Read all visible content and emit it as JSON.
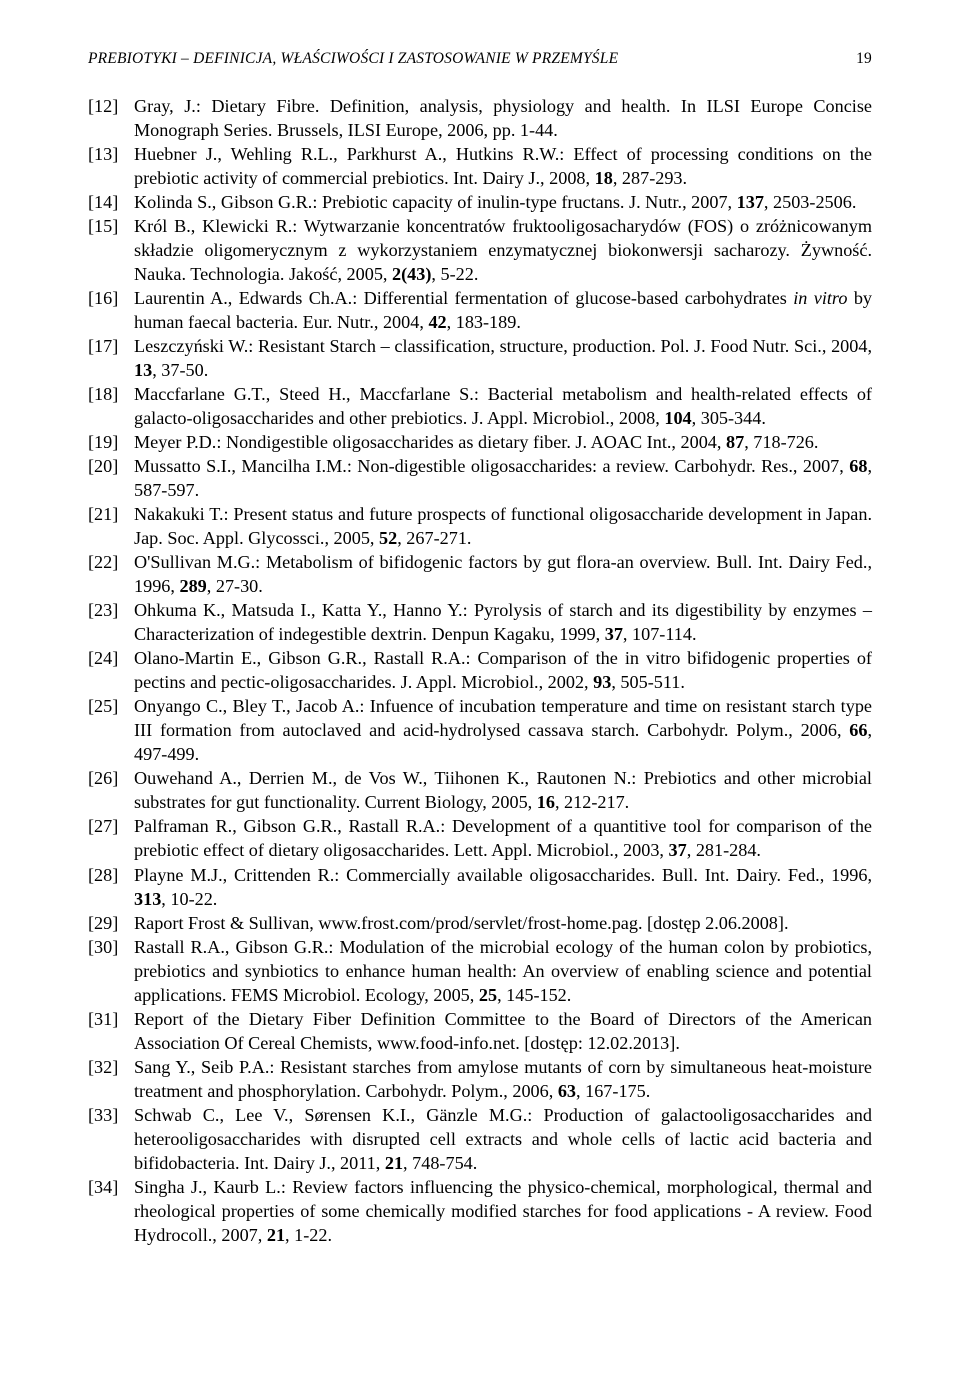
{
  "header": {
    "running_title": "PREBIOTYKI – DEFINICJA, WŁAŚCIWOŚCI I ZASTOSOWANIE W PRZEMYŚLE",
    "page_number": "19"
  },
  "references": [
    {
      "n": "[12]",
      "pre": "Gray, J.: Dietary Fibre. Definition, analysis, physiology and health. In ILSI Europe Concise Monograph Series. Brussels, ILSI Europe, 2006, pp. 1-44.",
      "bolds": []
    },
    {
      "n": "[13]",
      "pre": "Huebner J., Wehling R.L., Parkhurst A., Hutkins R.W.: Effect of processing conditions on the prebiotic activity of commercial prebiotics. Int. Dairy J., 2008, ",
      "bold": "18",
      "post": ", 287-293."
    },
    {
      "n": "[14]",
      "pre": "Kolinda S., Gibson G.R.: Prebiotic capacity of inulin-type fructans. J. Nutr., 2007, ",
      "bold": "137",
      "post": ", 2503-2506."
    },
    {
      "n": "[15]",
      "pre": "Król B., Klewicki R.: Wytwarzanie koncentratów fruktooligosacharydów (FOS) o zróżnicowanym składzie oligomerycznym z wykorzystaniem enzymatycznej biokonwersji sacharozy. Żywność. Nauka. Technologia. Jakość, 2005, ",
      "bold": "2(43)",
      "post": ", 5-22."
    },
    {
      "n": "[16]",
      "pre": "Laurentin A., Edwards Ch.A.: Differential fermentation of glucose-based carbohydrates ",
      "ital": "in vitro",
      "mid": " by human faecal bacteria. Eur. Nutr., 2004, ",
      "bold": "42",
      "post": ", 183-189."
    },
    {
      "n": "[17]",
      "pre": "Leszczyński W.: Resistant Starch – classification, structure, production. Pol. J. Food Nutr. Sci., 2004, ",
      "bold": "13",
      "post": ", 37-50."
    },
    {
      "n": "[18]",
      "pre": "Maccfarlane G.T., Steed H., Maccfarlane S.: Bacterial metabolism and health-related effects of galacto-oligosaccharides and other prebiotics. J. Appl. Microbiol., 2008, ",
      "bold": "104",
      "post": ", 305-344."
    },
    {
      "n": "[19]",
      "pre": "Meyer P.D.: Nondigestible oligosaccharides as dietary fiber. J. AOAC Int., 2004, ",
      "bold": "87",
      "post": ", 718-726."
    },
    {
      "n": "[20]",
      "pre": "Mussatto S.I., Mancilha I.M.: Non-digestible oligosaccharides: a review. Carbohydr. Res., 2007, ",
      "bold": "68",
      "post": ", 587-597."
    },
    {
      "n": "[21]",
      "pre": "Nakakuki T.: Present status and future prospects of functional oligosaccharide development in Japan. Jap. Soc. Appl. Glycossci., 2005, ",
      "bold": "52",
      "post": ", 267-271."
    },
    {
      "n": "[22]",
      "pre": "O'Sullivan M.G.: Metabolism of bifidogenic factors by gut flora-an overview. Bull. Int. Dairy Fed., 1996, ",
      "bold": "289",
      "post": ", 27-30."
    },
    {
      "n": "[23]",
      "pre": "Ohkuma K., Matsuda I., Katta Y., Hanno Y.: Pyrolysis of starch and its digestibility by enzymes – Characterization of indegestible dextrin. Denpun Kagaku, 1999, ",
      "bold": "37",
      "post": ", 107-114."
    },
    {
      "n": "[24]",
      "pre": "Olano-Martin E., Gibson G.R., Rastall R.A.: Comparison of the in vitro bifidogenic properties of pectins and pectic-oligosaccharides. J. Appl. Microbiol., 2002, ",
      "bold": "93",
      "post": ", 505-511."
    },
    {
      "n": "[25]",
      "pre": "Onyango C., Bley T., Jacob A.: Infuence of incubation temperature and time on resistant starch type III formation from autoclaved and acid-hydrolysed cassava starch. Carbohydr. Polym., 2006, ",
      "bold": "66",
      "post": ", 497-499."
    },
    {
      "n": "[26]",
      "pre": "Ouwehand A., Derrien M., de Vos W., Tiihonen K., Rautonen N.: Prebiotics and other microbial substrates for gut functionality. Current Biology, 2005, ",
      "bold": "16",
      "post": ", 212-217."
    },
    {
      "n": "[27]",
      "pre": "Palframan R., Gibson G.R., Rastall R.A.: Development of a quantitive tool for comparison of the prebiotic effect of dietary oligosaccharides. Lett. Appl. Microbiol., 2003, ",
      "bold": "37",
      "post": ", 281-284."
    },
    {
      "n": "[28]",
      "pre": "Playne M.J., Crittenden R.: Commercially available oligosaccharides. Bull. Int. Dairy. Fed., 1996, ",
      "bold": "313",
      "post": ", 10-22."
    },
    {
      "n": "[29]",
      "pre": "Raport Frost & Sullivan, www.frost.com/prod/servlet/frost-home.pag. [dostęp 2.06.2008].",
      "bolds": []
    },
    {
      "n": "[30]",
      "pre": "Rastall R.A., Gibson G.R.: Modulation of the microbial ecology of the human colon by probiotics, prebiotics and synbiotics to enhance human health: An overview of enabling science and potential applications. FEMS Microbiol. Ecology, 2005, ",
      "bold": "25",
      "post": ", 145-152."
    },
    {
      "n": "[31]",
      "pre": "Report of the Dietary Fiber Definition Committee to the Board of Directors of the American Association Of Cereal Chemists, www.food-info.net. [dostęp: 12.02.2013].",
      "bolds": []
    },
    {
      "n": "[32]",
      "pre": "Sang Y., Seib P.A.: Resistant starches from amylose mutants of corn by simultaneous heat-moisture treatment and phosphorylation. Carbohydr. Polym., 2006, ",
      "bold": "63",
      "post": ", 167-175."
    },
    {
      "n": "[33]",
      "pre": "Schwab C., Lee V., Sørensen K.I., Gänzle M.G.: Production of galactooligosaccharides and heterooligosaccharides with disrupted cell extracts and whole cells of lactic acid bacteria and bifidobacteria. Int. Dairy J., 2011, ",
      "bold": "21",
      "post": ", 748-754."
    },
    {
      "n": "[34]",
      "pre": "Singha J., Kaurb L.: Review factors influencing the physico-chemical, morphological, thermal and rheological properties of some chemically modified starches for food applications - A review. Food Hydrocoll., 2007, ",
      "bold": "21",
      "post": ", 1-22."
    }
  ]
}
